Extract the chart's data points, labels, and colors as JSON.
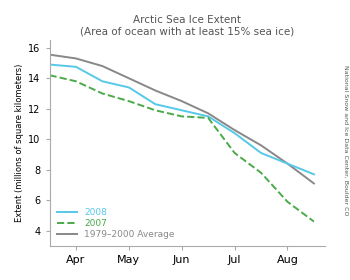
{
  "title": "Arctic Sea Ice Extent",
  "subtitle": "(Area of ocean with at least 15% sea ice)",
  "ylabel": "Extent (millions of square kilometers)",
  "right_label": "National Snow and Ice Data Center, Boulder CO",
  "ylim": [
    3,
    16.5
  ],
  "yticks": [
    4,
    6,
    8,
    10,
    12,
    14,
    16
  ],
  "months_labels": [
    "Apr",
    "May",
    "Jun",
    "Jul",
    "Aug"
  ],
  "x_month_ticks": [
    1,
    2,
    3,
    4,
    5
  ],
  "legend": [
    "2008",
    "2007",
    "1979–2000 Average"
  ],
  "line_2008_color": "#56c8e8",
  "line_2007_color": "#4aaa4a",
  "line_avg_color": "#888888",
  "x_2008": [
    0.5,
    1.0,
    1.5,
    2.0,
    2.5,
    3.0,
    3.5,
    4.0,
    4.5,
    5.0,
    5.5
  ],
  "y_2008": [
    14.9,
    14.75,
    13.8,
    13.4,
    12.3,
    11.9,
    11.5,
    10.4,
    9.1,
    8.4,
    7.7
  ],
  "x_2007": [
    0.5,
    1.0,
    1.5,
    2.0,
    2.5,
    3.0,
    3.5,
    4.0,
    4.5,
    5.0,
    5.5
  ],
  "y_2007": [
    14.2,
    13.8,
    13.0,
    12.5,
    11.9,
    11.5,
    11.4,
    9.1,
    7.8,
    5.9,
    4.6
  ],
  "x_avg": [
    0.5,
    1.0,
    1.5,
    2.0,
    2.5,
    3.0,
    3.5,
    4.0,
    4.5,
    5.0,
    5.5
  ],
  "y_avg": [
    15.55,
    15.3,
    14.8,
    14.0,
    13.2,
    12.5,
    11.7,
    10.6,
    9.6,
    8.4,
    7.1
  ],
  "xlim": [
    0.5,
    5.7
  ],
  "background_color": "#ffffff"
}
